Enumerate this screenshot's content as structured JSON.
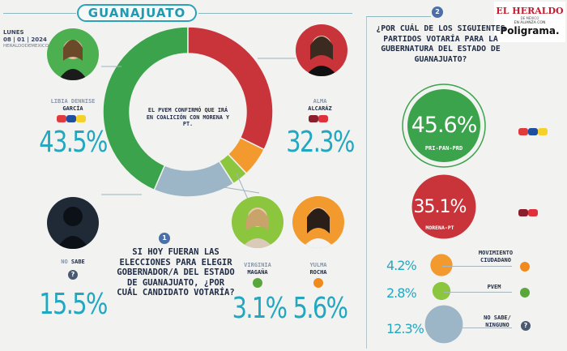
{
  "title": "GUANAJUATO",
  "date": {
    "day": "LUNES",
    "date": "08 | 01 | 2024",
    "source": "HERALDODEMEXICO.COM.MX"
  },
  "logo": {
    "name": "EL HERALDO",
    "sub": "DE MÉXICO",
    "alliance": "EN ALIANZA CON",
    "partner": "Poligrama."
  },
  "colors": {
    "green": "#3aa34b",
    "red": "#c9343b",
    "blue": "#9db6c7",
    "lime": "#8cc63e",
    "orange": "#f29a2e",
    "accent": "#21a7c0",
    "navy": "#1f2a44"
  },
  "questions": {
    "q1": {
      "number": "1",
      "text": "SI HOY FUERAN LAS ELECCIONES PARA ELEGIR GOBERNADOR/A DEL ESTADO DE GUANAJUATO, ¿POR CUÁL CANDIDATO VOTARÍA?"
    },
    "q2": {
      "number": "2",
      "text": "¿POR CUÁL DE LOS SIGUIENTES PARTIDOS VOTARÍA PARA LA GUBERNATURA DEL ESTADO DE GUANAJUATO?"
    }
  },
  "center_note": "EL PVEM CONFIRMÓ QUE IRÁ EN COALICIÓN CON MORENA Y PT.",
  "candidates": [
    {
      "first": "LIBIA DENNISE",
      "last": "GARCÍA",
      "value": "43.5%",
      "party": "pan-pri-prd-badge"
    },
    {
      "first": "ALMA",
      "last": "ALCARÁZ",
      "value": "32.3%",
      "party": "morena-pt-badge"
    },
    {
      "first": "NO",
      "last": "SABE",
      "value": "15.5%",
      "party": "question-icon"
    },
    {
      "first": "VIRGINIA",
      "last": "MAGAÑA",
      "value": "3.1%",
      "party": "pvem-badge"
    },
    {
      "first": "YULMA",
      "last": "ROCHA",
      "value": "5.6%",
      "party": "mc-badge"
    }
  ],
  "parties": [
    {
      "value": "45.6%",
      "label": "PRI-PAN-PRD"
    },
    {
      "value": "35.1%",
      "label": "MORENA-PT"
    },
    {
      "value": "4.2%",
      "label": "MOVIMIENTO CIUDADANO"
    },
    {
      "value": "2.8%",
      "label": "PVEM"
    },
    {
      "value": "12.3%",
      "label": "NO SABE/ NINGUNO"
    }
  ],
  "chart_data": [
    {
      "type": "pie",
      "donut": true,
      "categories": [
        "LIBIA DENNISE GARCÍA",
        "ALMA ALCARÁZ",
        "YULMA ROCHA",
        "VIRGINIA MAGAÑA",
        "NO SABE"
      ],
      "values": [
        43.5,
        32.3,
        5.6,
        3.1,
        15.5
      ],
      "colors": [
        "#3aa34b",
        "#c9343b",
        "#f29a2e",
        "#8cc63e",
        "#9db6c7"
      ]
    },
    {
      "type": "bubble",
      "categories": [
        "PRI-PAN-PRD",
        "MORENA-PT",
        "MOVIMIENTO CIUDADANO",
        "PVEM",
        "NO SABE/ NINGUNO"
      ],
      "values": [
        45.6,
        35.1,
        4.2,
        2.8,
        12.3
      ],
      "colors": [
        "#3aa34b",
        "#c9343b",
        "#f29a2e",
        "#8cc63e",
        "#9db6c7"
      ]
    }
  ]
}
